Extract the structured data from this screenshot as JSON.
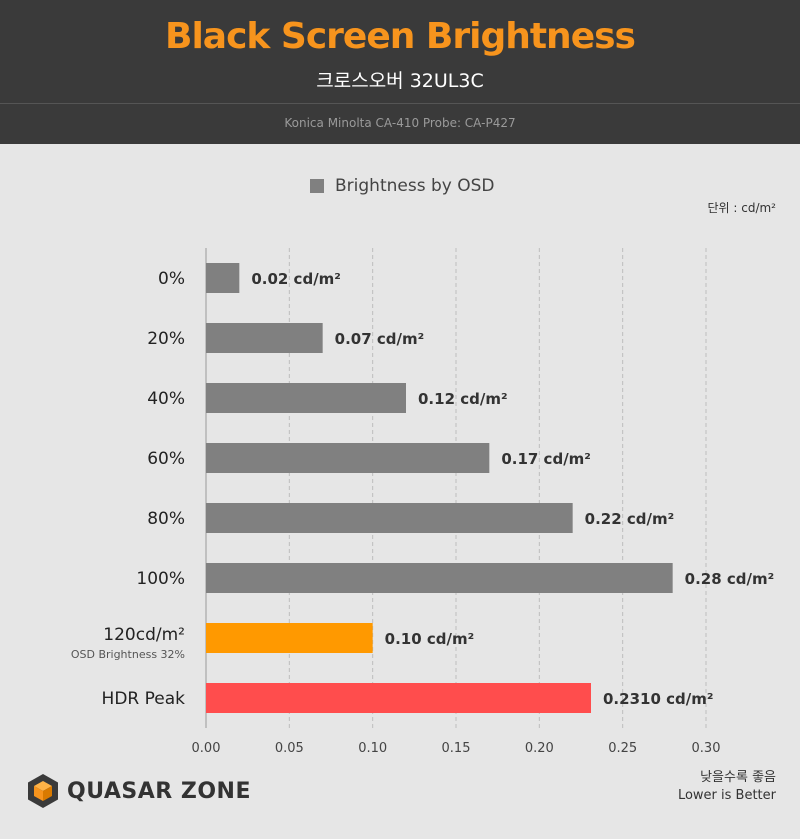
{
  "header": {
    "title": "Black Screen Brightness",
    "subtitle": "크로스오버 32UL3C",
    "probe": "Konica Minolta CA-410 Probe: CA-P427"
  },
  "legend": {
    "label": "Brightness by OSD"
  },
  "unit_label": "단위 : cd/m²",
  "footer": {
    "logo_text": "QUASAR ZONE",
    "note_line1": "낮을수록 좋음",
    "note_line2": "Lower is Better"
  },
  "colors": {
    "default": "#808080",
    "orange": "#ff9900",
    "red": "#ff4d4d"
  },
  "chart_data": {
    "type": "bar",
    "orientation": "horizontal",
    "categories": [
      "0%",
      "20%",
      "40%",
      "60%",
      "80%",
      "100%",
      "120cd/m²",
      "HDR Peak"
    ],
    "category_sublabels": [
      "",
      "",
      "",
      "",
      "",
      "",
      "OSD Brightness 32%",
      ""
    ],
    "values": [
      0.02,
      0.07,
      0.12,
      0.17,
      0.22,
      0.28,
      0.1,
      0.231
    ],
    "value_labels": [
      "0.02 cd/m²",
      "0.07 cd/m²",
      "0.12 cd/m²",
      "0.17 cd/m²",
      "0.22 cd/m²",
      "0.28 cd/m²",
      "0.10 cd/m²",
      "0.2310 cd/m²"
    ],
    "bar_colors": [
      "#808080",
      "#808080",
      "#808080",
      "#808080",
      "#808080",
      "#808080",
      "#ff9900",
      "#ff4d4d"
    ],
    "xticks": [
      "0.00",
      "0.05",
      "0.10",
      "0.15",
      "0.20",
      "0.25",
      "0.30"
    ],
    "xlim": [
      0,
      0.3
    ],
    "series_name": "Brightness by OSD",
    "grid": true,
    "legend_position": "top-center"
  }
}
